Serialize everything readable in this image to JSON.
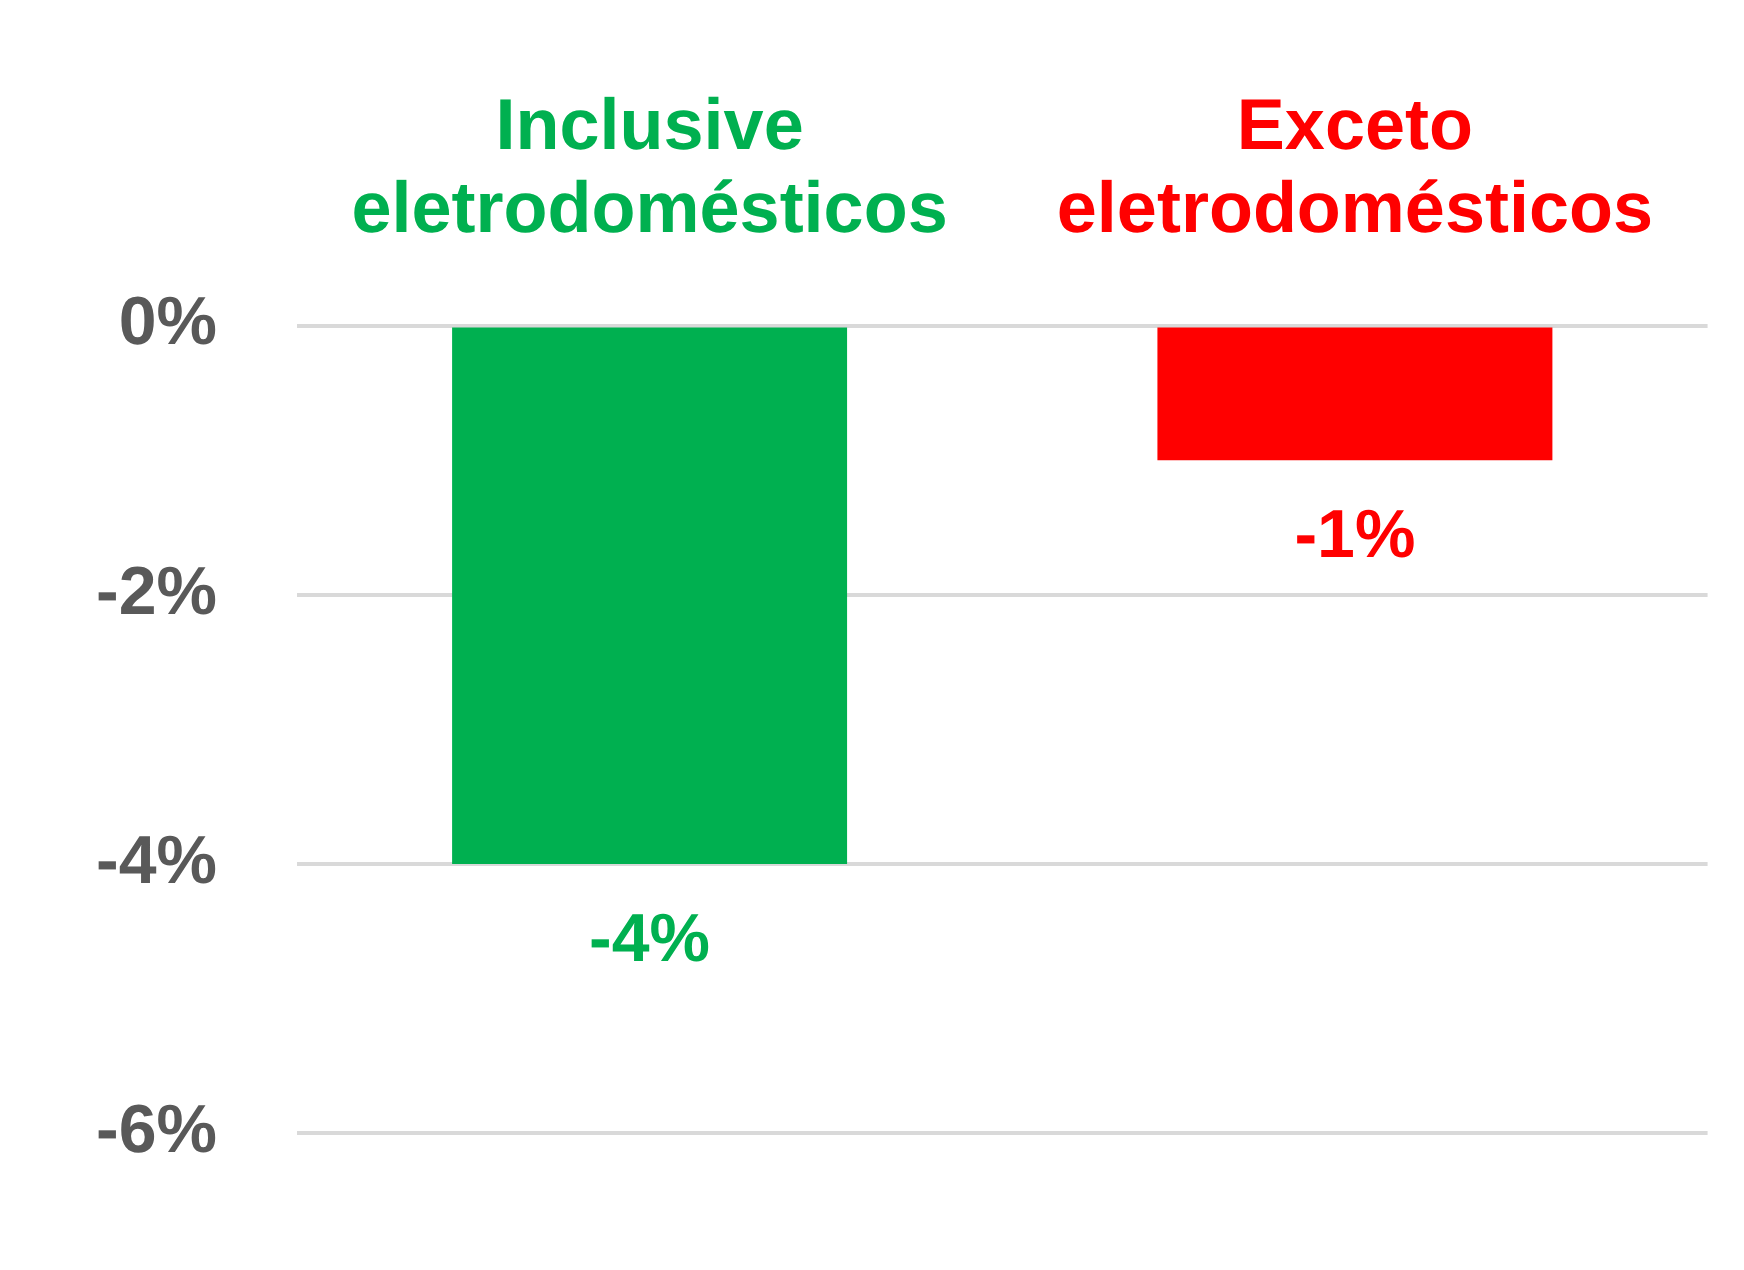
{
  "chart_data": {
    "type": "bar",
    "categories": [
      "Inclusive eletrodomésticos",
      "Exceto eletrodomésticos"
    ],
    "values": [
      -4,
      -1
    ],
    "colors": [
      "#00b050",
      "#ff0000"
    ],
    "value_labels": [
      "-4%",
      "-1%"
    ],
    "ylim": [
      -6,
      0
    ],
    "yticks": [
      {
        "value": 0,
        "label": "0%"
      },
      {
        "value": -2,
        "label": "-2%"
      },
      {
        "value": -4,
        "label": "-4%"
      },
      {
        "value": -6,
        "label": "-6%"
      }
    ],
    "grid": "y",
    "legend": false
  }
}
